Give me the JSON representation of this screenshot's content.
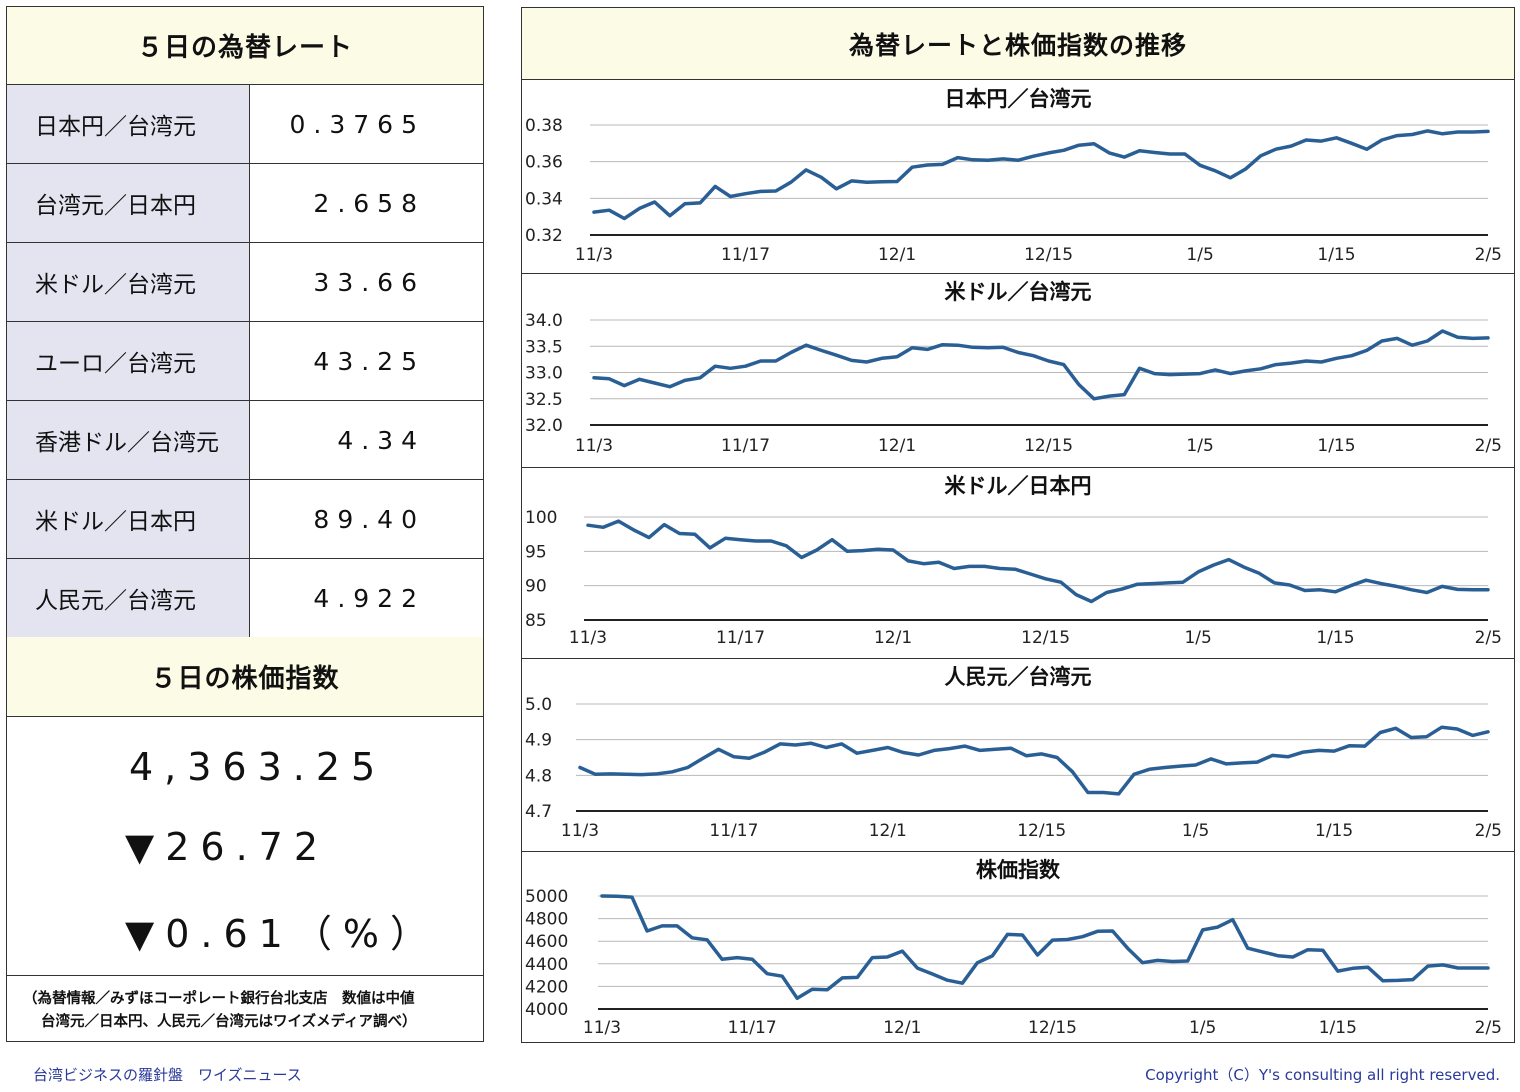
{
  "rates": {
    "title": "５日の為替レート",
    "items": [
      {
        "name": "日本円／台湾元",
        "value": "0.3765"
      },
      {
        "name": "台湾元／日本円",
        "value": "2.658"
      },
      {
        "name": "米ドル／台湾元",
        "value": "33.66"
      },
      {
        "name": "ユーロ／台湾元",
        "value": "43.25"
      },
      {
        "name": "香港ドル／台湾元",
        "value": "4.34"
      },
      {
        "name": "米ドル／日本円",
        "value": "89.40"
      },
      {
        "name": "人民元／台湾元",
        "value": "4.922"
      }
    ]
  },
  "stock": {
    "title": "５日の株価指数",
    "value": "4,363.25",
    "change": "▼26.72",
    "percent": "▼0.61（%）"
  },
  "note": {
    "line1": "（為替情報／みずほコーポレート銀行台北支店　数値は中値",
    "line2": "台湾元／日本円、人民元／台湾元はワイズメディア調べ）"
  },
  "charts_title": "為替レートと株価指数の推移",
  "footer": {
    "left": "台湾ビジネスの羅針盤　ワイズニュース",
    "right": "Copyright（C）Y's consulting all right reserved."
  },
  "colors": {
    "line": "#2a5f95",
    "header_bg": "#fcfce6",
    "label_bg": "#e4e4f0",
    "footer_text": "#2a3a9a"
  },
  "chart_data": [
    {
      "type": "line",
      "title": "日本円／台湾元",
      "x_ticks": [
        "11/3",
        "11/17",
        "12/1",
        "12/15",
        "1/5",
        "1/15",
        "2/5"
      ],
      "x_tick_index": [
        0,
        10,
        20,
        30,
        40,
        49,
        59
      ],
      "y_ticks": [
        "0.32",
        "0.34",
        "0.36",
        "0.38"
      ],
      "ylim": [
        0.32,
        0.38
      ],
      "grid": true,
      "values": [
        0.3325,
        0.3335,
        0.329,
        0.3345,
        0.338,
        0.3305,
        0.337,
        0.3375,
        0.3465,
        0.341,
        0.3425,
        0.3438,
        0.344,
        0.3488,
        0.3555,
        0.3515,
        0.3452,
        0.3495,
        0.3488,
        0.349,
        0.3492,
        0.357,
        0.3582,
        0.3585,
        0.3622,
        0.361,
        0.3608,
        0.3615,
        0.3608,
        0.363,
        0.3648,
        0.3662,
        0.369,
        0.3698,
        0.3648,
        0.3625,
        0.366,
        0.365,
        0.3642,
        0.3642,
        0.358,
        0.355,
        0.3512,
        0.356,
        0.3632,
        0.3668,
        0.3685,
        0.3718,
        0.3712,
        0.373,
        0.37,
        0.3668,
        0.3718,
        0.3742,
        0.3748,
        0.3768,
        0.3752,
        0.3762,
        0.3762,
        0.3765
      ]
    },
    {
      "type": "line",
      "title": "米ドル／台湾元",
      "x_ticks": [
        "11/3",
        "11/17",
        "12/1",
        "12/15",
        "1/5",
        "1/15",
        "2/5"
      ],
      "x_tick_index": [
        0,
        10,
        20,
        30,
        40,
        49,
        59
      ],
      "y_ticks": [
        "32.0",
        "32.5",
        "33.0",
        "33.5",
        "34.0"
      ],
      "ylim": [
        32.0,
        34.0
      ],
      "grid": true,
      "values": [
        32.9,
        32.88,
        32.75,
        32.87,
        32.8,
        32.73,
        32.85,
        32.9,
        33.12,
        33.08,
        33.12,
        33.22,
        33.22,
        33.38,
        33.52,
        33.42,
        33.33,
        33.23,
        33.2,
        33.27,
        33.3,
        33.47,
        33.44,
        33.53,
        33.52,
        33.48,
        33.47,
        33.48,
        33.38,
        33.32,
        33.22,
        33.15,
        32.77,
        32.5,
        32.55,
        32.58,
        33.08,
        32.98,
        32.96,
        32.97,
        32.98,
        33.05,
        32.98,
        33.03,
        33.07,
        33.15,
        33.18,
        33.22,
        33.2,
        33.27,
        33.32,
        33.42,
        33.6,
        33.65,
        33.52,
        33.6,
        33.79,
        33.67,
        33.65,
        33.66
      ]
    },
    {
      "type": "line",
      "title": "米ドル／日本円",
      "x_ticks": [
        "11/3",
        "11/17",
        "12/1",
        "12/15",
        "1/5",
        "1/15",
        "2/5"
      ],
      "x_tick_index": [
        0,
        10,
        20,
        30,
        40,
        49,
        59
      ],
      "y_ticks": [
        "85",
        "90",
        "95",
        "100"
      ],
      "ylim": [
        85,
        100
      ],
      "grid": true,
      "values": [
        98.8,
        98.5,
        99.4,
        98.1,
        97.0,
        98.9,
        97.6,
        97.5,
        95.5,
        96.9,
        96.7,
        96.5,
        96.5,
        95.8,
        94.1,
        95.2,
        96.7,
        95.0,
        95.1,
        95.3,
        95.2,
        93.6,
        93.2,
        93.4,
        92.5,
        92.8,
        92.8,
        92.5,
        92.4,
        91.7,
        91.0,
        90.5,
        88.7,
        87.7,
        89.0,
        89.5,
        90.2,
        90.3,
        90.4,
        90.5,
        92.0,
        93.0,
        93.8,
        92.7,
        91.8,
        90.4,
        90.1,
        89.3,
        89.4,
        89.1,
        90.0,
        90.8,
        90.3,
        89.9,
        89.4,
        89.0,
        89.9,
        89.45,
        89.4,
        89.4
      ]
    },
    {
      "type": "line",
      "title": "人民元／台湾元",
      "x_ticks": [
        "11/3",
        "11/17",
        "12/1",
        "12/15",
        "1/5",
        "1/15",
        "2/5"
      ],
      "x_tick_index": [
        0,
        10,
        20,
        30,
        40,
        49,
        59
      ],
      "y_ticks": [
        "4.7",
        "4.8",
        "4.9",
        "5.0"
      ],
      "ylim": [
        4.7,
        5.0
      ],
      "grid": true,
      "values": [
        4.822,
        4.803,
        4.804,
        4.803,
        4.802,
        4.804,
        4.81,
        4.822,
        4.848,
        4.873,
        4.852,
        4.848,
        4.865,
        4.888,
        4.885,
        4.89,
        4.878,
        4.888,
        4.862,
        4.87,
        4.878,
        4.864,
        4.857,
        4.87,
        4.875,
        4.882,
        4.87,
        4.873,
        4.876,
        4.855,
        4.86,
        4.85,
        4.81,
        4.752,
        4.752,
        4.748,
        4.803,
        4.817,
        4.822,
        4.826,
        4.829,
        4.846,
        4.832,
        4.835,
        4.837,
        4.856,
        4.852,
        4.865,
        4.87,
        4.868,
        4.883,
        4.882,
        4.92,
        4.932,
        4.906,
        4.908,
        4.935,
        4.93,
        4.912,
        4.922
      ]
    },
    {
      "type": "line",
      "title": "株価指数",
      "x_ticks": [
        "11/3",
        "11/17",
        "12/1",
        "12/15",
        "1/5",
        "1/15",
        "2/5"
      ],
      "x_tick_index": [
        0,
        10,
        20,
        30,
        40,
        49,
        59
      ],
      "y_ticks": [
        "4000",
        "4200",
        "4400",
        "4600",
        "4800",
        "5000"
      ],
      "ylim": [
        4000,
        5000
      ],
      "grid": true,
      "values": [
        5000,
        4998,
        4990,
        4690,
        4735,
        4735,
        4630,
        4612,
        4440,
        4455,
        4440,
        4312,
        4290,
        4095,
        4175,
        4170,
        4275,
        4280,
        4455,
        4460,
        4512,
        4362,
        4310,
        4255,
        4228,
        4410,
        4470,
        4660,
        4655,
        4478,
        4610,
        4615,
        4640,
        4688,
        4690,
        4538,
        4410,
        4430,
        4420,
        4425,
        4700,
        4725,
        4790,
        4538,
        4505,
        4472,
        4460,
        4525,
        4520,
        4335,
        4360,
        4370,
        4250,
        4253,
        4260,
        4380,
        4390,
        4363,
        4363,
        4363.25
      ]
    }
  ]
}
